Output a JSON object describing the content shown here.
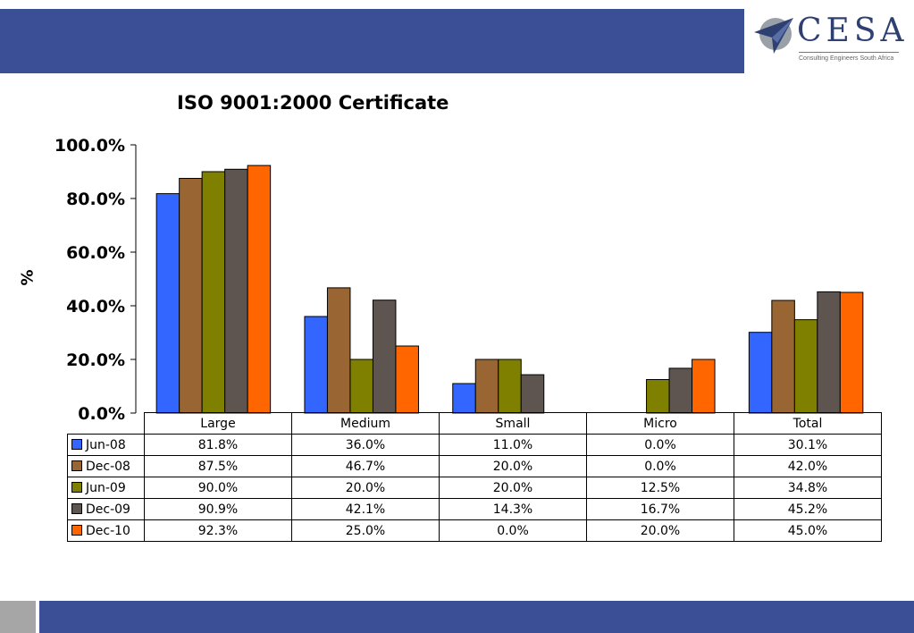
{
  "brand": {
    "name": "CESA",
    "tagline": "Consulting Engineers South Africa"
  },
  "colors": {
    "band": "#3a4f95",
    "grey": "#a6a6a6"
  },
  "chart_data": {
    "type": "bar",
    "title": "ISO 9001:2000 Certificate",
    "ylabel": "%",
    "xlabel": "",
    "ylim": [
      0,
      100
    ],
    "yticks": [
      "0.0%",
      "20.0%",
      "40.0%",
      "60.0%",
      "80.0%",
      "100.0%"
    ],
    "categories": [
      "Large",
      "Medium",
      "Small",
      "Micro",
      "Total"
    ],
    "series": [
      {
        "name": "Jun-08",
        "color": "#3366ff",
        "values": [
          81.8,
          36.0,
          11.0,
          0.0,
          30.1
        ],
        "labels": [
          "81.8%",
          "36.0%",
          "11.0%",
          "0.0%",
          "30.1%"
        ]
      },
      {
        "name": "Dec-08",
        "color": "#996633",
        "values": [
          87.5,
          46.7,
          20.0,
          0.0,
          42.0
        ],
        "labels": [
          "87.5%",
          "46.7%",
          "20.0%",
          "0.0%",
          "42.0%"
        ]
      },
      {
        "name": "Jun-09",
        "color": "#808000",
        "values": [
          90.0,
          20.0,
          20.0,
          12.5,
          34.8
        ],
        "labels": [
          "90.0%",
          "20.0%",
          "20.0%",
          "12.5%",
          "34.8%"
        ]
      },
      {
        "name": "Dec-09",
        "color": "#5f5550",
        "values": [
          90.9,
          42.1,
          14.3,
          16.7,
          45.2
        ],
        "labels": [
          "90.9%",
          "42.1%",
          "14.3%",
          "16.7%",
          "45.2%"
        ]
      },
      {
        "name": "Dec-10",
        "color": "#ff6600",
        "values": [
          92.3,
          25.0,
          0.0,
          20.0,
          45.0
        ],
        "labels": [
          "92.3%",
          "25.0%",
          "0.0%",
          "20.0%",
          "45.0%"
        ]
      }
    ],
    "legend": "data-table",
    "grid": false
  }
}
